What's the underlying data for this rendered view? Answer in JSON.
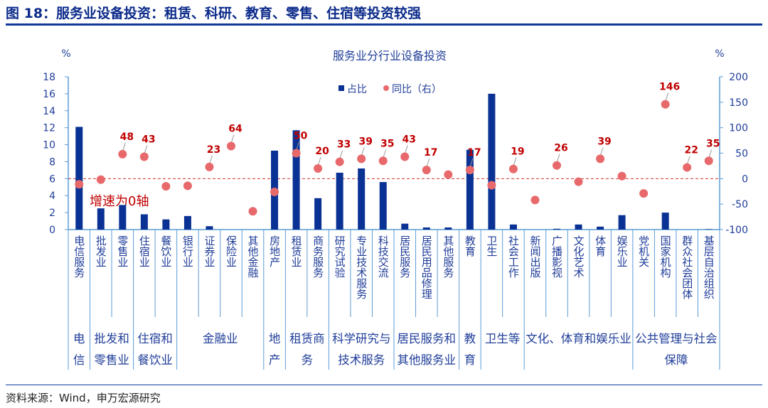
{
  "figure_title": "图 18：服务业设备投资：租赁、科研、教育、零售、住宿等投资较强",
  "source": "资料来源：Wind，申万宏源研究",
  "chart_data": {
    "type": "bar+scatter",
    "title": "服务业分行业设备投资",
    "y_left_unit": "%",
    "y_right_unit": "%",
    "y_left_lim": [
      0,
      18
    ],
    "y_left_ticks": [
      0,
      2,
      4,
      6,
      8,
      10,
      12,
      14,
      16,
      18
    ],
    "y_right_lim": [
      -100,
      200
    ],
    "y_right_ticks": [
      -100,
      -50,
      0,
      50,
      100,
      150,
      200
    ],
    "zero_line_annotation": "增速为0轴",
    "legend_position": "top-center",
    "colors": {
      "bar": "#0a3294",
      "dot": "#e8696b",
      "label": "#c00000",
      "axis": "#5b9bd5",
      "text": "#1f3d99",
      "zero_line": "#d03030"
    },
    "categories": [
      "电信服务",
      "批发业",
      "零售业",
      "住宿业",
      "餐饮业",
      "银行业",
      "证券业",
      "保险业",
      "其他金融",
      "房地产",
      "租赁业",
      "商务服务",
      "研究试验",
      "专业技术服务",
      "科技交流",
      "居民服务",
      "居民用品修理",
      "其他服务",
      "教育",
      "卫生",
      "社会工作",
      "新闻出版",
      "广播影视",
      "文化艺术",
      "体育",
      "娱乐业",
      "党机关",
      "国家机构",
      "群众社会团体",
      "基层自治组织"
    ],
    "groups": [
      {
        "label": "电信",
        "span": 1
      },
      {
        "label": "批发和零售业",
        "span": 2
      },
      {
        "label": "住宿和餐饮业",
        "span": 2
      },
      {
        "label": "金融业",
        "span": 4
      },
      {
        "label": "地产",
        "span": 1
      },
      {
        "label": "租赁商务",
        "span": 2
      },
      {
        "label": "科学研究与技术服务",
        "span": 3
      },
      {
        "label": "居民服务和其他服务业",
        "span": 3
      },
      {
        "label": "教育",
        "span": 1
      },
      {
        "label": "卫生等",
        "span": 2
      },
      {
        "label": "文化、体育和娱乐业",
        "span": 5
      },
      {
        "label": "公共管理与社会保障",
        "span": 4
      }
    ],
    "series": [
      {
        "name": "占比",
        "type": "bar",
        "axis": "left",
        "values": [
          12.1,
          2.5,
          2.9,
          1.8,
          1.2,
          1.6,
          0.4,
          0,
          0,
          9.3,
          11.7,
          3.7,
          6.7,
          7.2,
          5.6,
          0.7,
          0.25,
          0.25,
          9.4,
          16.0,
          0.6,
          0,
          0.1,
          0.6,
          0.35,
          1.7,
          0,
          2.0,
          0,
          0.05
        ]
      },
      {
        "name": "同比（右）",
        "type": "scatter",
        "axis": "right",
        "values": [
          -11,
          -2,
          48,
          43,
          -15,
          -14,
          23,
          64,
          -64,
          -26,
          50,
          20,
          33,
          39,
          35,
          43,
          17,
          8,
          17,
          -13,
          19,
          -42,
          26,
          -6,
          39,
          5,
          -29,
          146,
          22,
          35
        ],
        "labels": [
          null,
          null,
          "48",
          "43",
          null,
          null,
          "23",
          "64",
          null,
          null,
          "50",
          "20",
          "33",
          "39",
          "35",
          "43",
          "17",
          null,
          "17",
          null,
          "19",
          null,
          "26",
          null,
          "39",
          null,
          null,
          "146",
          "22",
          "35"
        ]
      }
    ]
  }
}
